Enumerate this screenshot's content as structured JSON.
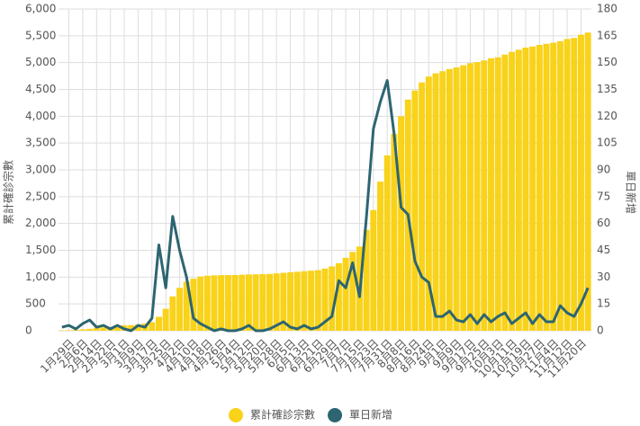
{
  "chart_data": {
    "type": "bar",
    "ylabel": "累計確診宗數",
    "y2label": "單日新增",
    "categories": [
      null,
      "1月29日",
      null,
      "2月6日",
      null,
      "2月14日",
      null,
      "2月22日",
      null,
      "3月1日",
      null,
      "3月9日",
      null,
      "3月17日",
      null,
      "3月25日",
      null,
      "4月2日",
      null,
      "4月10日",
      null,
      "4月18日",
      null,
      "4月26日",
      null,
      "5月4日",
      null,
      "5月12日",
      null,
      "5月20日",
      null,
      "5月28日",
      null,
      "6月5日",
      null,
      "6月13日",
      null,
      "6月21日",
      null,
      "6月29日",
      null,
      "7月7日",
      null,
      "7月15日",
      null,
      "7月23日",
      null,
      "7月31日",
      null,
      "8月8日",
      null,
      "8月16日",
      null,
      "8月24日",
      null,
      "9月1日",
      null,
      "9月9日",
      null,
      "9月17日",
      null,
      "9月25日",
      null,
      "10月3日",
      null,
      "10月11日",
      null,
      "10月19日",
      null,
      "10月27日",
      null,
      "11月4日",
      null,
      "11月12日",
      null,
      "11月20日",
      null
    ],
    "series": [
      {
        "name": "累計確診宗數",
        "type": "bar",
        "color": "#f9d21a",
        "values": [
          8,
          10,
          15,
          25,
          36,
          56,
          62,
          70,
          90,
          100,
          105,
          115,
          135,
          160,
          260,
          410,
          640,
          800,
          915,
          970,
          1010,
          1025,
          1033,
          1037,
          1038,
          1040,
          1045,
          1050,
          1052,
          1055,
          1060,
          1070,
          1080,
          1090,
          1100,
          1110,
          1120,
          1130,
          1160,
          1200,
          1260,
          1360,
          1470,
          1570,
          1880,
          2250,
          2780,
          3270,
          3670,
          4000,
          4310,
          4480,
          4630,
          4740,
          4800,
          4840,
          4880,
          4910,
          4950,
          4990,
          5010,
          5040,
          5080,
          5100,
          5150,
          5200,
          5240,
          5280,
          5300,
          5330,
          5350,
          5370,
          5400,
          5440,
          5460,
          5520,
          5560
        ]
      },
      {
        "name": "單日新增",
        "type": "line",
        "axis": "y2",
        "color": "#2d6571",
        "values": [
          2,
          3,
          1,
          4,
          6,
          2,
          3,
          1,
          3,
          1,
          0,
          3,
          2,
          7,
          48,
          24,
          64,
          45,
          30,
          7,
          4,
          2,
          0,
          1,
          0,
          0,
          1,
          3,
          0,
          0,
          1,
          3,
          5,
          2,
          1,
          3,
          1,
          2,
          5,
          8,
          28,
          24,
          38,
          19,
          64,
          113,
          128,
          140,
          110,
          69,
          65,
          39,
          30,
          27,
          8,
          8,
          11,
          6,
          5,
          9,
          4,
          9,
          5,
          8,
          10,
          4,
          7,
          10,
          4,
          9,
          5,
          5,
          14,
          10,
          8,
          15,
          24
        ]
      }
    ],
    "ylim": [
      0,
      6000
    ],
    "yticks": [
      0,
      500,
      {
        "value": 1000,
        "label": "1,000"
      },
      {
        "value": 1500,
        "label": "1,500"
      },
      {
        "value": 2000,
        "label": "2,000"
      },
      {
        "value": 2500,
        "label": "2,500"
      },
      {
        "value": 3000,
        "label": "3,000"
      },
      {
        "value": 3500,
        "label": "3,500"
      },
      {
        "value": 4000,
        "label": "4,000"
      },
      {
        "value": 4500,
        "label": "4,500"
      },
      {
        "value": 5000,
        "label": "5,000"
      },
      {
        "value": 5500,
        "label": "5,500"
      },
      {
        "value": 6000,
        "label": "6,000"
      }
    ],
    "y2lim": [
      0,
      180
    ],
    "y2ticks": [
      0,
      15,
      30,
      45,
      60,
      75,
      90,
      105,
      120,
      135,
      150,
      165,
      180
    ],
    "grid": true
  }
}
